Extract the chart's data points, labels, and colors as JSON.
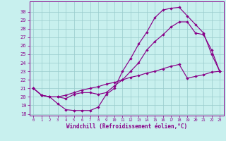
{
  "xlabel": "Windchill (Refroidissement éolien,°C)",
  "bg_color": "#c8f0ee",
  "line_color": "#880088",
  "grid_color": "#99cccc",
  "xlim_min": -0.5,
  "xlim_max": 23.5,
  "ylim_min": 17.8,
  "ylim_max": 31.2,
  "yticks": [
    18,
    19,
    20,
    21,
    22,
    23,
    24,
    25,
    26,
    27,
    28,
    29,
    30
  ],
  "xticks": [
    0,
    1,
    2,
    3,
    4,
    5,
    6,
    7,
    8,
    9,
    10,
    11,
    12,
    13,
    14,
    15,
    16,
    17,
    18,
    19,
    20,
    21,
    22,
    23
  ],
  "curve1_x": [
    0,
    1,
    2,
    3,
    4,
    5,
    6,
    7,
    8,
    9,
    10,
    11,
    12,
    13,
    14,
    15,
    16,
    17,
    18,
    19,
    20,
    21,
    22,
    23
  ],
  "curve1_y": [
    21.0,
    20.2,
    20.0,
    19.2,
    18.5,
    18.4,
    18.4,
    18.4,
    18.8,
    20.3,
    21.0,
    23.0,
    24.5,
    26.2,
    27.6,
    29.3,
    30.2,
    30.4,
    30.5,
    29.5,
    28.5,
    27.5,
    25.0,
    23.0
  ],
  "curve2_x": [
    0,
    1,
    2,
    3,
    4,
    5,
    6,
    7,
    8,
    9,
    10,
    11,
    12,
    13,
    14,
    15,
    16,
    17,
    18,
    19,
    20,
    21,
    22,
    23
  ],
  "curve2_y": [
    21.0,
    20.2,
    20.0,
    20.0,
    19.8,
    20.3,
    20.5,
    20.5,
    20.3,
    20.5,
    21.3,
    22.0,
    23.0,
    24.0,
    25.5,
    26.5,
    27.3,
    28.2,
    28.8,
    28.8,
    27.5,
    27.3,
    25.5,
    23.0
  ],
  "curve3_x": [
    0,
    1,
    2,
    3,
    4,
    5,
    6,
    7,
    8,
    9,
    10,
    11,
    12,
    13,
    14,
    15,
    16,
    17,
    18,
    19,
    20,
    21,
    22,
    23
  ],
  "curve3_y": [
    21.0,
    20.2,
    20.0,
    20.0,
    20.2,
    20.5,
    20.8,
    21.0,
    21.2,
    21.5,
    21.7,
    22.0,
    22.3,
    22.5,
    22.8,
    23.0,
    23.3,
    23.6,
    23.8,
    22.2,
    22.4,
    22.6,
    22.9,
    23.0
  ]
}
